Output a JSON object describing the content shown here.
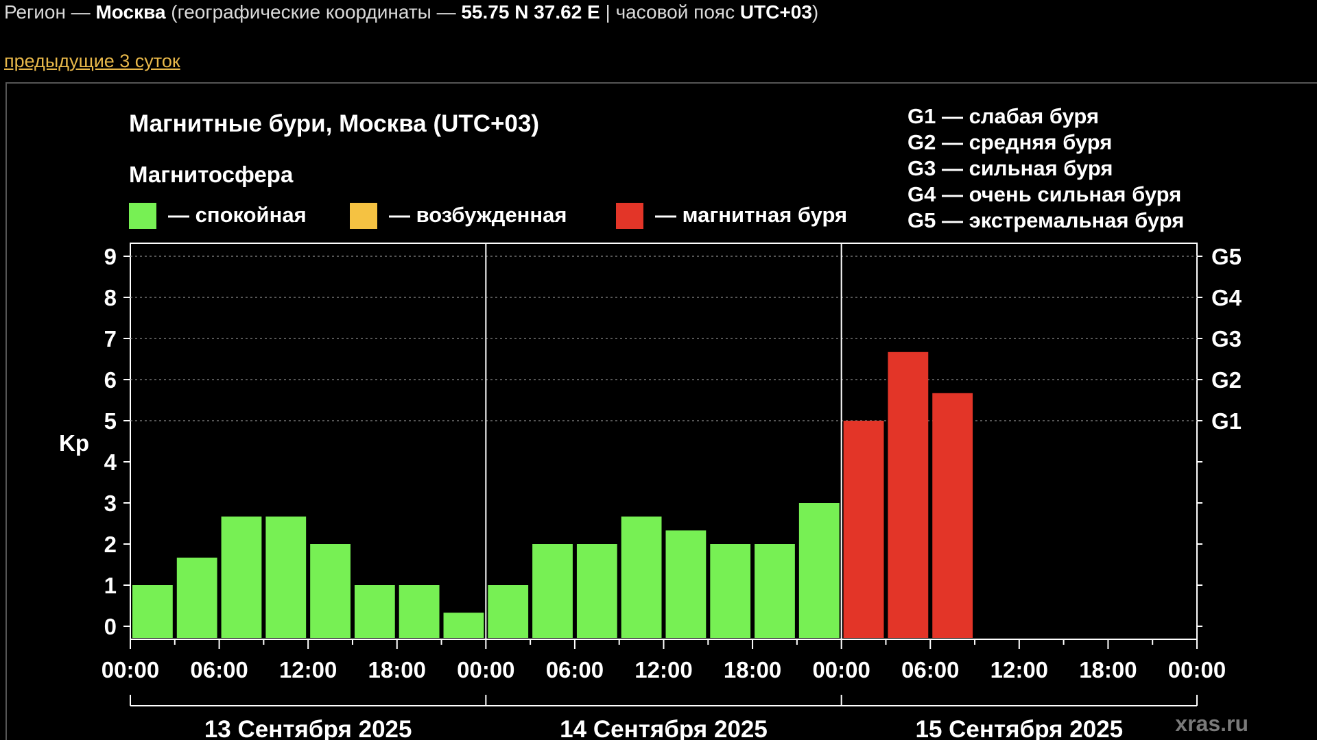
{
  "header": {
    "region_prefix": "Регион — ",
    "region_name": "Москва",
    "coords_prefix": " (географические координаты — ",
    "coords": "55.75 N 37.62 E",
    "tz_prefix": " | часовой пояс ",
    "tz": "UTC+03",
    "suffix": ")"
  },
  "nav": {
    "prev_link": "предыдущие 3 суток"
  },
  "colors": {
    "calm": "#77f054",
    "excited": "#f5c242",
    "storm": "#e33528",
    "background": "#000000",
    "link": "#e8b84a"
  },
  "chart_data": {
    "type": "bar",
    "title": "Магнитные бури, Москва (UTC+03)",
    "subtitle": "Магнитосфера",
    "legend": [
      {
        "label": "— спокойная",
        "color": "#77f054"
      },
      {
        "label": "— возбужденная",
        "color": "#f5c242"
      },
      {
        "label": "— магнитная буря",
        "color": "#e33528"
      }
    ],
    "g_legend": [
      "G1 — слабая буря",
      "G2 — средняя буря",
      "G3 — сильная буря",
      "G4 — очень сильная буря",
      "G5 — экстремальная буря"
    ],
    "ylabel": "Kp",
    "ylim": [
      0,
      9
    ],
    "yticks": [
      "0",
      "1",
      "2",
      "3",
      "4",
      "5",
      "6",
      "7",
      "8",
      "9"
    ],
    "g_levels": [
      {
        "label": "G1",
        "kp": 5
      },
      {
        "label": "G2",
        "kp": 6
      },
      {
        "label": "G3",
        "kp": 7
      },
      {
        "label": "G4",
        "kp": 8
      },
      {
        "label": "G5",
        "kp": 9
      }
    ],
    "xtick_labels": [
      "00:00",
      "06:00",
      "12:00",
      "18:00",
      "00:00",
      "06:00",
      "12:00",
      "18:00",
      "00:00",
      "06:00",
      "12:00",
      "18:00",
      "00:00"
    ],
    "days": [
      "13 Сентября 2025",
      "14 Сентября 2025",
      "15 Сентября 2025"
    ],
    "interval_hours": 3,
    "values": [
      1,
      1.67,
      2.67,
      2.67,
      2,
      1,
      1,
      0.33,
      1,
      2,
      2,
      2.67,
      2.33,
      2,
      2,
      3,
      5,
      6.67,
      5.67
    ],
    "status": [
      "calm",
      "calm",
      "calm",
      "calm",
      "calm",
      "calm",
      "calm",
      "calm",
      "calm",
      "calm",
      "calm",
      "calm",
      "calm",
      "calm",
      "calm",
      "calm",
      "storm",
      "storm",
      "storm"
    ],
    "grid": "dashed at 5–9",
    "watermark": "xras.ru"
  }
}
